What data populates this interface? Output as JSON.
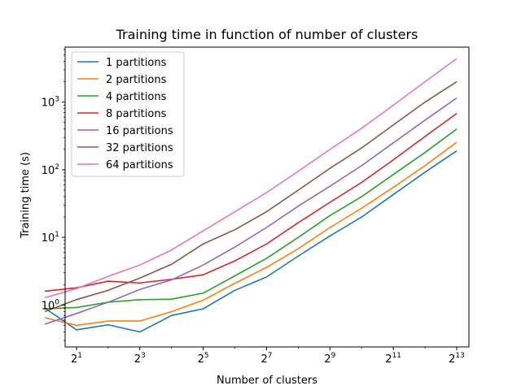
{
  "chart_data": {
    "type": "line",
    "title": "Training time in function of number of clusters",
    "xlabel": "Number of clusters",
    "ylabel": "Training time (s)",
    "x_scale": "log2",
    "y_scale": "log10",
    "xlim": [
      1.56,
      10700
    ],
    "ylim": [
      0.24,
      6500
    ],
    "x_ticks": [
      {
        "value": 2,
        "base": "2",
        "exp": "1"
      },
      {
        "value": 8,
        "base": "2",
        "exp": "3"
      },
      {
        "value": 32,
        "base": "2",
        "exp": "5"
      },
      {
        "value": 128,
        "base": "2",
        "exp": "7"
      },
      {
        "value": 512,
        "base": "2",
        "exp": "9"
      },
      {
        "value": 2048,
        "base": "2",
        "exp": "11"
      },
      {
        "value": 8192,
        "base": "2",
        "exp": "13"
      }
    ],
    "y_ticks": [
      {
        "value": 1,
        "base": "10",
        "exp": "0"
      },
      {
        "value": 10,
        "base": "10",
        "exp": "1"
      },
      {
        "value": 100,
        "base": "10",
        "exp": "2"
      },
      {
        "value": 1000,
        "base": "10",
        "exp": "3"
      }
    ],
    "legend_position": "upper left",
    "grid": false,
    "x": [
      1,
      2,
      4,
      8,
      16,
      32,
      64,
      128,
      256,
      512,
      1024,
      2048,
      4096,
      8192
    ],
    "series": [
      {
        "name": "1 partitions",
        "color": "#1f77b4",
        "values": [
          0.9,
          0.43,
          0.51,
          0.4,
          0.7,
          0.88,
          1.65,
          2.6,
          5.3,
          10.5,
          20,
          43,
          92,
          190
        ]
      },
      {
        "name": "2 partitions",
        "color": "#ff7f0e",
        "values": [
          0.65,
          0.5,
          0.58,
          0.58,
          0.8,
          1.18,
          2.1,
          3.6,
          6.8,
          14,
          27,
          55,
          115,
          255
        ]
      },
      {
        "name": "4 partitions",
        "color": "#2ca02c",
        "values": [
          0.88,
          0.92,
          1.1,
          1.2,
          1.22,
          1.5,
          2.7,
          4.9,
          10,
          21,
          40,
          85,
          180,
          400
        ]
      },
      {
        "name": "8 partitions",
        "color": "#d62728",
        "values": [
          1.6,
          1.8,
          2.25,
          2.12,
          2.4,
          2.8,
          4.5,
          8.0,
          16.5,
          33,
          65,
          140,
          310,
          680
        ]
      },
      {
        "name": "16 partitions",
        "color": "#9467bd",
        "values": [
          0.52,
          0.75,
          1.1,
          1.7,
          2.35,
          3.9,
          7.2,
          14,
          29,
          57,
          115,
          250,
          540,
          1150
        ]
      },
      {
        "name": "32 partitions",
        "color": "#8c564b",
        "values": [
          0.8,
          1.2,
          1.65,
          2.5,
          4.0,
          8.0,
          13,
          24,
          50,
          105,
          210,
          460,
          1000,
          2000
        ]
      },
      {
        "name": "64 partitions",
        "color": "#e377c2",
        "values": [
          1.28,
          1.75,
          2.65,
          3.9,
          6.5,
          12.5,
          24,
          46,
          95,
          200,
          410,
          900,
          2000,
          4400
        ]
      }
    ]
  }
}
